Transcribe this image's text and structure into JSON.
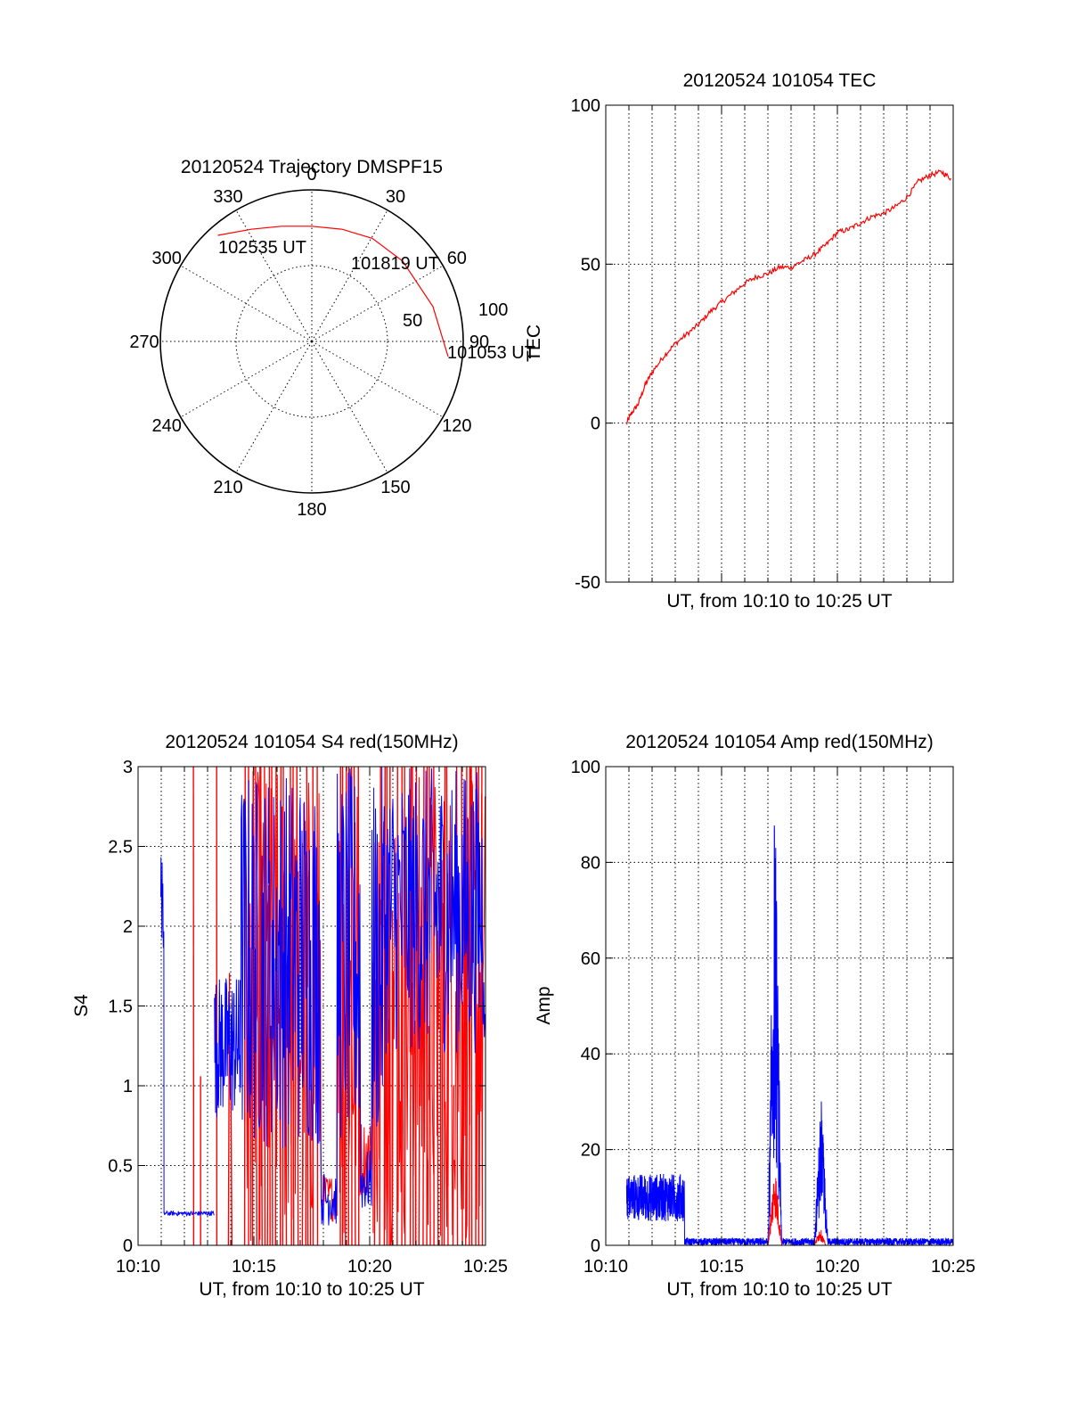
{
  "colors": {
    "red_series": "#ff0000",
    "blue_series": "#0000ff",
    "axis": "#000000",
    "grid": "#000000"
  },
  "chart_data": [
    {
      "type": "polar",
      "title": "20120524 Trajectory DMSPF15",
      "angle_labels": [
        "0",
        "30",
        "60",
        "90",
        "120",
        "150",
        "180",
        "210",
        "240",
        "270",
        "300",
        "330"
      ],
      "radial_labels": [
        "50",
        "100"
      ],
      "rlim": [
        0,
        90
      ],
      "points": [
        {
          "label": "101053 UT",
          "azimuth": 95,
          "zenith": 90
        },
        {
          "label": "101819 UT",
          "azimuth": 60,
          "zenith": 74
        },
        {
          "label": "102535 UT",
          "azimuth": 315,
          "zenith": 78
        }
      ],
      "trajectory": {
        "x": [
          0.9,
          0.8,
          0.6,
          0.4,
          0.2,
          0,
          -0.2,
          -0.4,
          -0.62
        ],
        "y": [
          -0.1,
          0.23,
          0.53,
          0.68,
          0.74,
          0.76,
          0.76,
          0.74,
          0.7
        ]
      },
      "grid": true
    },
    {
      "type": "line",
      "title": "20120524 101054 TEC",
      "xlabel": "UT, from 10:10 to 10:25 UT",
      "ylabel": "TEC",
      "xlim": [
        0,
        15
      ],
      "ylim": [
        -50,
        100
      ],
      "yticks": [
        "-50",
        "0",
        "50",
        "100"
      ],
      "xticks": [],
      "series": [
        {
          "color": "#ff0000",
          "x": [
            0.9,
            1.1,
            1.4,
            1.7,
            2,
            2.5,
            3,
            3.5,
            4,
            4.5,
            5,
            5.5,
            6,
            6.5,
            7,
            7.5,
            8,
            8.5,
            9,
            9.5,
            10,
            10.5,
            11,
            11.5,
            12,
            12.5,
            13,
            13.5,
            14,
            14.5,
            14.9
          ],
          "y": [
            0,
            3,
            6,
            12,
            16,
            21,
            25,
            28,
            31,
            35,
            38,
            41,
            44,
            46,
            47,
            49,
            49,
            51,
            53,
            56,
            60,
            61,
            63,
            65,
            66,
            68,
            71,
            76,
            78,
            79,
            77
          ]
        }
      ],
      "grid": true
    },
    {
      "type": "line",
      "title": "20120524 101054 S4 red(150MHz)",
      "xlabel": "UT, from 10:10 to 10:25 UT",
      "ylabel": "S4",
      "xlim": [
        0,
        15
      ],
      "ylim": [
        0,
        3
      ],
      "xticks": [
        "10:10",
        "10:15",
        "10:20",
        "10:25"
      ],
      "yticks": [
        "0",
        "0.5",
        "1",
        "1.5",
        "2",
        "2.5",
        "3"
      ],
      "series": [
        {
          "color": "#0000ff",
          "segments": [
            {
              "x": [
                1.0,
                1.03,
                1.06,
                1.1,
                1.12
              ],
              "y": [
                1.75,
                2.55,
                1.9,
                2.3,
                0.2
              ]
            },
            {
              "x": [
                1.12,
                1.5,
                2,
                2.5,
                3,
                3.3
              ],
              "y": [
                0.2,
                0.21,
                0.21,
                0.21,
                0.22,
                0.25
              ]
            },
            {
              "x": [
                3.3,
                3.4,
                3.6,
                3.8,
                4.0,
                4.2,
                4.4
              ],
              "y": [
                1.35,
                1.1,
                1.5,
                1.0,
                1.3,
                0.9,
                1.45
              ]
            },
            {
              "x": [
                7.9,
                8.1,
                8.3,
                8.5,
                8.7
              ],
              "y": [
                0.35,
                0.15,
                0.12,
                0.2,
                0.6
              ]
            },
            {
              "x": [
                9.5,
                9.7,
                9.9,
                10.1
              ],
              "y": [
                0.4,
                0.2,
                0.18,
                0.3
              ]
            }
          ]
        },
        {
          "color": "#ff0000",
          "dense_region": [
            3.3,
            15
          ]
        }
      ],
      "grid": true
    },
    {
      "type": "line",
      "title": "20120524 101054 Amp red(150MHz)",
      "xlabel": "UT, from 10:10 to 10:25 UT",
      "ylabel": "Amp",
      "xlim": [
        0,
        15
      ],
      "ylim": [
        0,
        100
      ],
      "xticks": [
        "10:10",
        "10:15",
        "10:20",
        "10:25"
      ],
      "yticks": [
        "0",
        "20",
        "40",
        "60",
        "80",
        "100"
      ],
      "series": [
        {
          "color": "#0000ff",
          "bursts": [
            {
              "x0": 0.9,
              "x1": 3.4,
              "amp": 15,
              "base": 5
            },
            {
              "x0": 7.0,
              "x1": 7.6,
              "amp": 98,
              "base": 20
            },
            {
              "x0": 9.0,
              "x1": 9.6,
              "amp": 33,
              "base": 8
            }
          ],
          "noise": 1.5
        },
        {
          "color": "#ff0000",
          "bursts": [
            {
              "x0": 7.0,
              "x1": 7.6,
              "amp": 18,
              "base": 6
            },
            {
              "x0": 9.0,
              "x1": 9.5,
              "amp": 4,
              "base": 1
            }
          ]
        }
      ],
      "grid": true
    }
  ]
}
